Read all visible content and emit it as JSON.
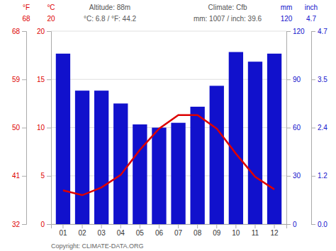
{
  "chart_data": {
    "type": "bar",
    "categories": [
      "01",
      "02",
      "03",
      "04",
      "05",
      "06",
      "07",
      "08",
      "09",
      "10",
      "11",
      "12"
    ],
    "series": [
      {
        "type": "bar",
        "axis": "y2",
        "color": "#1111cc",
        "values": [
          106,
          83,
          83,
          75,
          62,
          60,
          63,
          73,
          86,
          107,
          101,
          106
        ]
      },
      {
        "type": "line",
        "color": "#dd0000",
        "values": [
          3.5,
          3.0,
          3.8,
          5.1,
          7.7,
          9.9,
          11.3,
          11.3,
          9.9,
          7.3,
          4.9,
          3.6
        ]
      }
    ],
    "ylabel": "°C",
    "ylim": [
      0,
      20
    ],
    "yticks": [
      0,
      5,
      10,
      15,
      20
    ],
    "ylabel_outer": "°F",
    "yticks_outer": [
      {
        "value": 0,
        "label": "32"
      },
      {
        "value": 5,
        "label": "41"
      },
      {
        "value": 10,
        "label": "50"
      },
      {
        "value": 15,
        "label": "59"
      },
      {
        "value": 20,
        "label": "68"
      }
    ],
    "y2label": "mm",
    "y2lim": [
      0,
      120
    ],
    "y2ticks": [
      0,
      30,
      60,
      90,
      120
    ],
    "y2label_outer": "inch",
    "y2ticks_outer": [
      {
        "value": 0,
        "label": "0.0"
      },
      {
        "value": 30,
        "label": "1.2"
      },
      {
        "value": 60,
        "label": "2.4"
      },
      {
        "value": 90,
        "label": "3.5"
      },
      {
        "value": 120,
        "label": "4.7"
      }
    ],
    "annotations": [
      "Altitude: 88m",
      "Climate: Cfb",
      "°C: 6.8 / °F: 44.2",
      "mm: 1007 / inch: 39.6"
    ],
    "footer": "Copyright: CLIMATE-DATA.ORG",
    "grid": true
  }
}
